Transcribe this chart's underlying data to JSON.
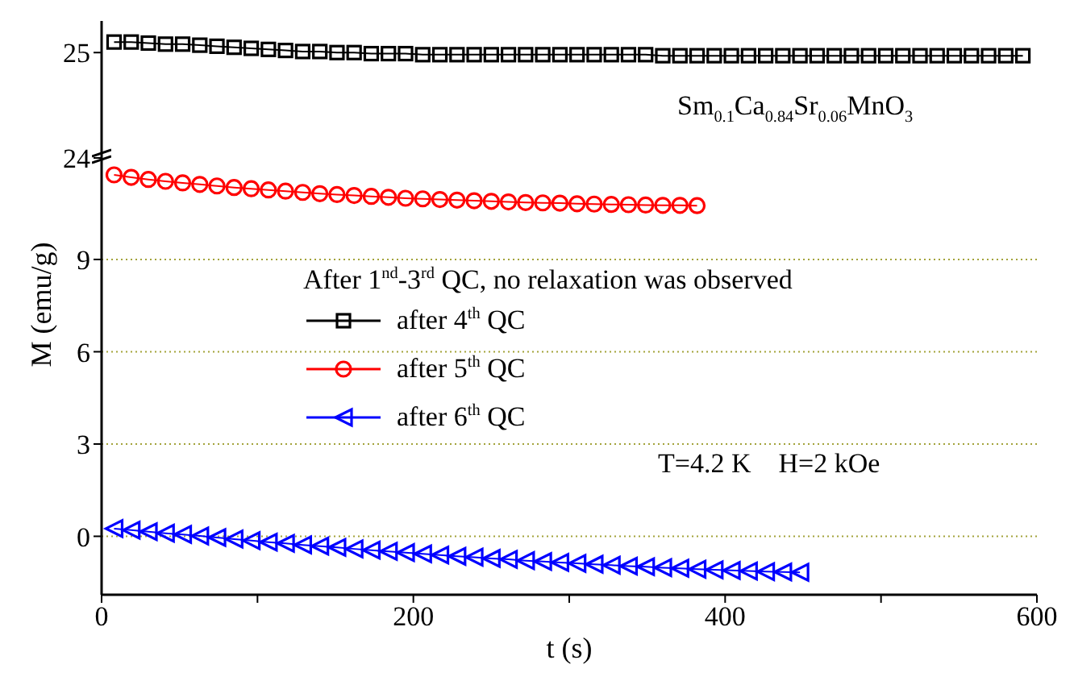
{
  "chart_data": [
    {
      "type": "line",
      "xlim": [
        0,
        600
      ],
      "ylim": [
        24,
        25.3
      ],
      "yticks": [
        24,
        25
      ],
      "tick_labels": "y",
      "legend": "bottom",
      "line_style": "solid",
      "annotations": [
        "Sm$_{0.1}$Ca$_{0.84}$Sr$_{0.06}$MnO$_{3}$"
      ],
      "series": [
        {
          "name": "after 4$^{th}$ QC",
          "color": "#000000",
          "marker": "square",
          "x": [
            8,
            19,
            30,
            41,
            52,
            63,
            74,
            85,
            96,
            107,
            118,
            129,
            140,
            151,
            162,
            173,
            184,
            195,
            206,
            217,
            228,
            239,
            250,
            261,
            272,
            283,
            294,
            305,
            316,
            327,
            338,
            349,
            360,
            371,
            382,
            393,
            404,
            415,
            426,
            437,
            448,
            459,
            470,
            481,
            492,
            503,
            514,
            525,
            536,
            547,
            558,
            569,
            580,
            591
          ],
          "values": [
            25.1,
            25.1,
            25.09,
            25.08,
            25.08,
            25.07,
            25.06,
            25.05,
            25.04,
            25.03,
            25.02,
            25.01,
            25.01,
            25.0,
            25.0,
            24.99,
            24.99,
            24.99,
            24.98,
            24.98,
            24.98,
            24.98,
            24.98,
            24.98,
            24.98,
            24.98,
            24.98,
            24.98,
            24.98,
            24.98,
            24.98,
            24.98,
            24.97,
            24.97,
            24.97,
            24.97,
            24.97,
            24.97,
            24.97,
            24.97,
            24.97,
            24.97,
            24.97,
            24.97,
            24.97,
            24.97,
            24.97,
            24.97,
            24.97,
            24.97,
            24.97,
            24.97,
            24.97,
            24.97
          ]
        }
      ]
    },
    {
      "type": "line",
      "xlabel": "t (s)",
      "ylabel": "M (emu/g)",
      "legend_title": "After 1$^{nd}$-3$^{rd}$ QC, no relaxation was observed",
      "legend": "left",
      "xlim": [
        0,
        600
      ],
      "xticks": [
        0,
        {
          "value": 100,
          "label": null
        },
        200,
        {
          "value": 300,
          "label": null
        },
        400,
        {
          "value": 500,
          "label": null
        },
        600
      ],
      "ylim": [
        -1.9,
        12.3
      ],
      "yticks": [
        0,
        3,
        6,
        9
      ],
      "grid": "y",
      "line_style": "solid",
      "annotations": [
        "T=4.2 K    H=2 kOe"
      ],
      "series": [
        {
          "name": "after 5$^{th}$ QC",
          "color": "#ff0000",
          "marker": "circle",
          "x": [
            8,
            19,
            30,
            41,
            52,
            63,
            74,
            85,
            96,
            107,
            118,
            129,
            140,
            151,
            162,
            173,
            184,
            195,
            206,
            217,
            228,
            239,
            250,
            261,
            272,
            283,
            294,
            305,
            316,
            327,
            338,
            349,
            360,
            371,
            382
          ],
          "values": [
            11.75,
            11.67,
            11.6,
            11.54,
            11.49,
            11.44,
            11.39,
            11.34,
            11.3,
            11.26,
            11.22,
            11.18,
            11.14,
            11.11,
            11.08,
            11.05,
            11.02,
            10.99,
            10.97,
            10.95,
            10.93,
            10.91,
            10.89,
            10.87,
            10.85,
            10.84,
            10.83,
            10.81,
            10.8,
            10.79,
            10.78,
            10.77,
            10.76,
            10.76,
            10.75
          ]
        },
        {
          "name": "after 6$^{th}$ QC",
          "color": "#0000ff",
          "marker": "triangle",
          "x": [
            8,
            19,
            30,
            41,
            52,
            63,
            74,
            85,
            96,
            107,
            118,
            129,
            140,
            151,
            162,
            173,
            184,
            195,
            206,
            217,
            228,
            239,
            250,
            261,
            272,
            283,
            294,
            305,
            316,
            327,
            338,
            349,
            360,
            371,
            382,
            393,
            404,
            415,
            426,
            437,
            448
          ],
          "values": [
            0.25,
            0.2,
            0.15,
            0.1,
            0.06,
            0.01,
            -0.04,
            -0.09,
            -0.14,
            -0.19,
            -0.23,
            -0.28,
            -0.32,
            -0.36,
            -0.41,
            -0.45,
            -0.49,
            -0.53,
            -0.57,
            -0.61,
            -0.65,
            -0.68,
            -0.72,
            -0.75,
            -0.79,
            -0.82,
            -0.85,
            -0.88,
            -0.91,
            -0.94,
            -0.97,
            -0.99,
            -1.02,
            -1.04,
            -1.07,
            -1.09,
            -1.11,
            -1.13,
            -1.15,
            -1.16,
            -1.17
          ]
        }
      ]
    }
  ]
}
